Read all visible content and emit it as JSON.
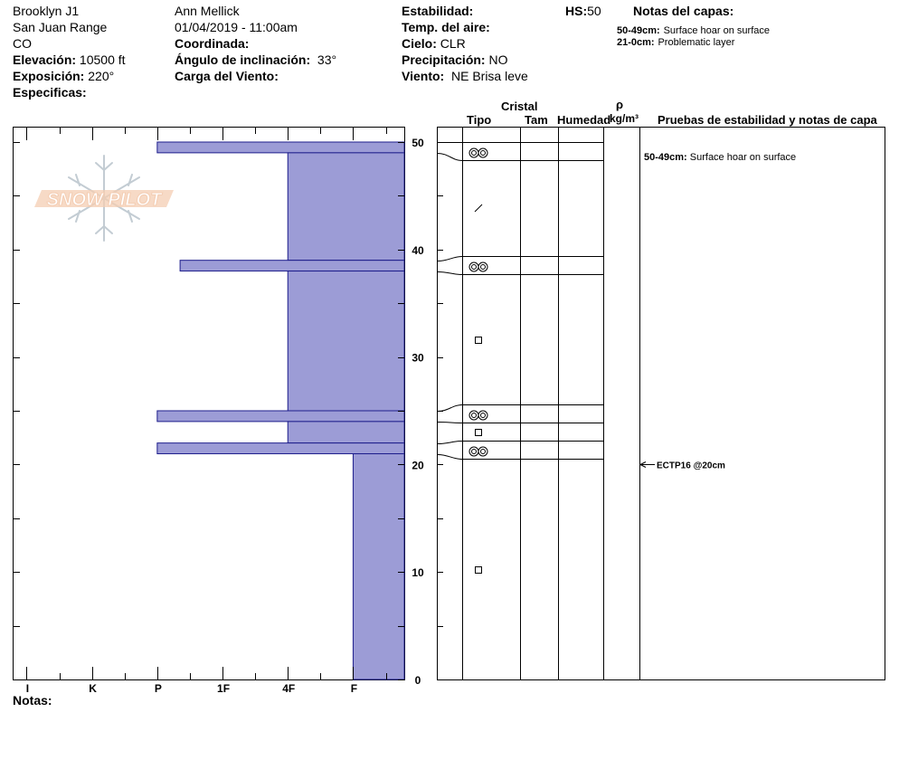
{
  "header": {
    "location": "Brooklyn J1",
    "range": "San Juan Range",
    "state": "CO",
    "elevation_label": "Elevación:",
    "elevation_value": "10500 ft",
    "aspect_label": "Exposición:",
    "aspect_value": "220°",
    "specifics_label": "Especificas:",
    "observer": "Ann Mellick",
    "datetime": "01/04/2019 - 11:00am",
    "coord_label": "Coordinada:",
    "slope_label": "Ángulo de inclinación:",
    "slope_value": "33°",
    "wind_load_label": "Carga del Viento:",
    "stability_label": "Estabilidad:",
    "air_temp_label": "Temp. del aire:",
    "sky_label": "Cielo:",
    "sky_value": "CLR",
    "precip_label": "Precipitación:",
    "precip_value": "NO",
    "wind_label": "Viento:",
    "wind_value": "NE Brisa leve",
    "hs_label": "HS:",
    "hs_value": "50",
    "layer_notes_title": "Notas del capas:",
    "layer_notes": [
      {
        "range": "50-49cm:",
        "text": "Surface hoar on surface"
      },
      {
        "range": "21-0cm:",
        "text": "Problematic layer"
      }
    ]
  },
  "logo": {
    "text": "SNOW PILOT"
  },
  "columns": {
    "crystal": "Cristal",
    "type": "Tipo",
    "size": "Tam",
    "moisture": "Humedad",
    "rho": "ρ",
    "density_unit": "kg/m³",
    "tests": "Pruebas de estabilidad y notas de capa"
  },
  "notes_label": "Notas:",
  "colors": {
    "hardness_fill": "#9c9cd6",
    "hardness_stroke": "#1e1e8c"
  },
  "chart_data": {
    "type": "bar",
    "orientation": "horizontal",
    "x_categories": [
      "I",
      "K",
      "P",
      "1F",
      "4F",
      "F"
    ],
    "x_semantic": "hand hardness (left = hardest)",
    "y_range": [
      0,
      50
    ],
    "y_ticks": [
      0,
      10,
      20,
      30,
      40,
      50
    ],
    "y_unit": "cm",
    "layers": [
      {
        "top": 50,
        "bottom": 49,
        "hardness": "P"
      },
      {
        "top": 49,
        "bottom": 39,
        "hardness": "4F"
      },
      {
        "top": 39,
        "bottom": 38,
        "hardness": "P-"
      },
      {
        "top": 38,
        "bottom": 25,
        "hardness": "4F"
      },
      {
        "top": 25,
        "bottom": 24,
        "hardness": "P"
      },
      {
        "top": 24,
        "bottom": 22,
        "hardness": "4F"
      },
      {
        "top": 22,
        "bottom": 21,
        "hardness": "P"
      },
      {
        "top": 21,
        "bottom": 0,
        "hardness": "F"
      }
    ],
    "hardness_values": {
      "I": 0.2,
      "K": 1.2,
      "P": 2.2,
      "P-": 2.55,
      "1F": 3.2,
      "4F": 4.2,
      "F": 5.2
    },
    "crystal_types": [
      {
        "depth": 49.5,
        "symbol": "surface-hoar-icon"
      },
      {
        "depth": 43.5,
        "symbol": "slash-icon"
      },
      {
        "depth": 38.5,
        "symbol": "surface-hoar-icon"
      },
      {
        "depth": 31.5,
        "symbol": "square-icon"
      },
      {
        "depth": 24.5,
        "symbol": "surface-hoar-icon"
      },
      {
        "depth": 23,
        "symbol": "square-icon"
      },
      {
        "depth": 21.5,
        "symbol": "surface-hoar-icon"
      },
      {
        "depth": 10.5,
        "symbol": "square-icon"
      }
    ],
    "layer_boundaries": [
      50,
      49,
      39,
      38,
      25,
      24,
      22,
      21
    ],
    "tests": [
      {
        "depth": 20,
        "label": "ECTP16 @20cm"
      }
    ],
    "layer_annotations": [
      {
        "depth": 49,
        "range": "50-49cm:",
        "text": "Surface hoar on surface"
      }
    ]
  }
}
